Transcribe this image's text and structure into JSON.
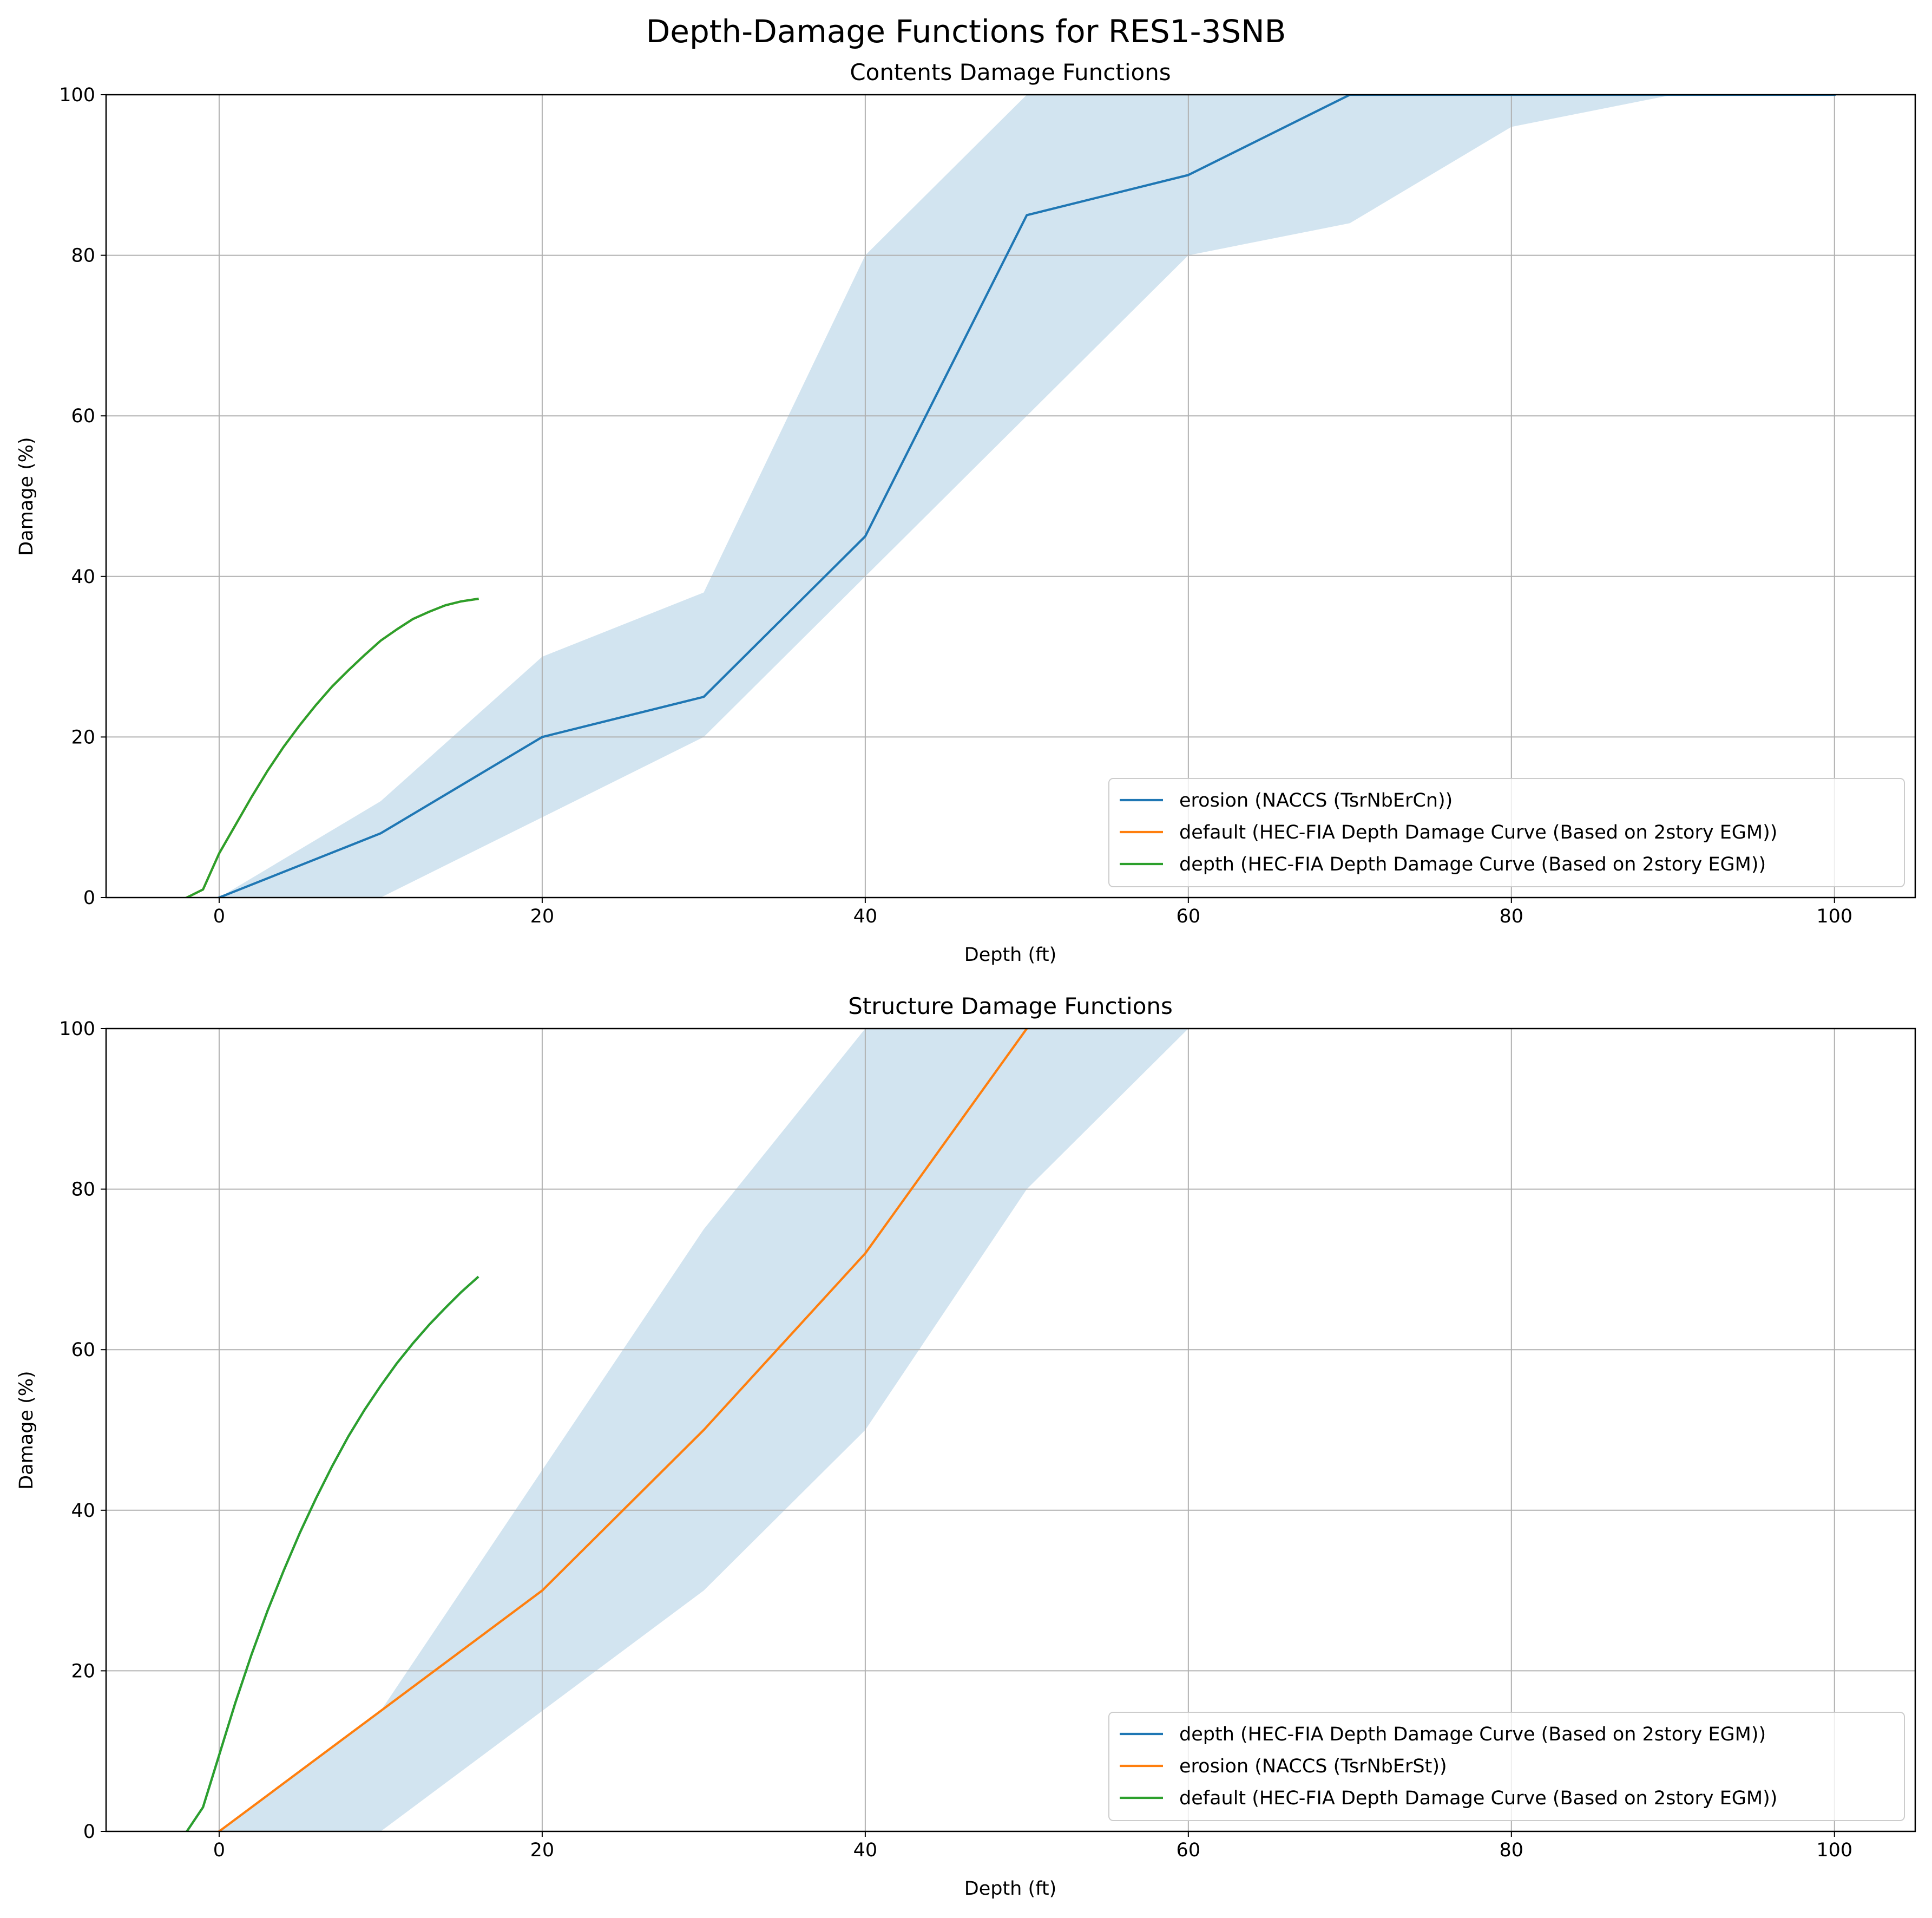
{
  "figure": {
    "suptitle": "Depth-Damage Functions for RES1-3SNB"
  },
  "chart_data": [
    {
      "type": "line",
      "title": "Contents Damage Functions",
      "xlabel": "Depth (ft)",
      "ylabel": "Damage (%)",
      "xlim": [
        -7,
        105
      ],
      "ylim": [
        0,
        100
      ],
      "xticks": [
        0,
        20,
        40,
        60,
        80,
        100
      ],
      "yticks": [
        0,
        20,
        40,
        60,
        80,
        100
      ],
      "grid": true,
      "legend_position": "lower right",
      "band": {
        "color": "#1f77b4",
        "opacity": 0.2,
        "x": [
          0,
          10,
          20,
          30,
          40,
          50,
          60,
          70,
          80,
          90,
          100
        ],
        "lower": [
          0,
          0,
          10,
          20,
          40,
          60,
          80,
          84,
          96,
          100,
          100
        ],
        "upper": [
          0,
          12,
          30,
          38,
          80,
          100,
          100,
          100,
          100,
          100,
          100
        ]
      },
      "series": [
        {
          "name": "erosion (NACCS (TsrNbErCn))",
          "color": "#1f77b4",
          "x": [
            0,
            10,
            20,
            30,
            40,
            50,
            60,
            70,
            80,
            90,
            100
          ],
          "y": [
            0,
            8,
            20,
            25,
            45,
            85,
            90,
            100,
            100,
            100,
            100
          ]
        },
        {
          "name": "default (HEC-FIA Depth Damage Curve (Based on 2story EGM))",
          "color": "#ff7f0e",
          "x": [
            -2,
            -1,
            0,
            1,
            2,
            3,
            4,
            5,
            6,
            7,
            8,
            9,
            10,
            11,
            12,
            13,
            14,
            15,
            16
          ],
          "y": [
            0,
            1,
            5.5,
            9,
            12.5,
            15.8,
            18.8,
            21.5,
            24,
            26.3,
            28.3,
            30.2,
            32,
            33.4,
            34.7,
            35.6,
            36.4,
            36.9,
            37.2
          ]
        },
        {
          "name": "depth (HEC-FIA Depth Damage Curve (Based on 2story EGM))",
          "color": "#2ca02c",
          "x": [
            -2,
            -1,
            0,
            1,
            2,
            3,
            4,
            5,
            6,
            7,
            8,
            9,
            10,
            11,
            12,
            13,
            14,
            15,
            16
          ],
          "y": [
            0,
            1,
            5.5,
            9,
            12.5,
            15.8,
            18.8,
            21.5,
            24,
            26.3,
            28.3,
            30.2,
            32,
            33.4,
            34.7,
            35.6,
            36.4,
            36.9,
            37.2
          ]
        }
      ]
    },
    {
      "type": "line",
      "title": "Structure Damage Functions",
      "xlabel": "Depth (ft)",
      "ylabel": "Damage (%)",
      "xlim": [
        -7,
        105
      ],
      "ylim": [
        0,
        100
      ],
      "xticks": [
        0,
        20,
        40,
        60,
        80,
        100
      ],
      "yticks": [
        0,
        20,
        40,
        60,
        80,
        100
      ],
      "grid": true,
      "legend_position": "lower right",
      "band": {
        "color": "#1f77b4",
        "opacity": 0.2,
        "x": [
          0,
          10,
          20,
          30,
          40,
          50,
          60
        ],
        "lower": [
          0,
          0,
          15,
          30,
          50,
          80,
          100
        ],
        "upper": [
          0,
          15,
          45,
          75,
          100,
          100,
          100
        ]
      },
      "series": [
        {
          "name": "depth (HEC-FIA Depth Damage Curve (Based on 2story EGM))",
          "color": "#1f77b4",
          "x": [
            -2,
            -1,
            0,
            1,
            2,
            3,
            4,
            5,
            6,
            7,
            8,
            9,
            10,
            11,
            12,
            13,
            14,
            15,
            16
          ],
          "y": [
            0,
            3,
            9.5,
            16,
            22,
            27.5,
            32.5,
            37.2,
            41.5,
            45.5,
            49.2,
            52.5,
            55.5,
            58.3,
            60.8,
            63.1,
            65.2,
            67.2,
            69
          ]
        },
        {
          "name": "erosion (NACCS (TsrNbErSt))",
          "color": "#ff7f0e",
          "x": [
            0,
            10,
            20,
            30,
            40,
            50
          ],
          "y": [
            0,
            15,
            30,
            50,
            72,
            100
          ]
        },
        {
          "name": "default (HEC-FIA Depth Damage Curve (Based on 2story EGM))",
          "color": "#2ca02c",
          "x": [
            -2,
            -1,
            0,
            1,
            2,
            3,
            4,
            5,
            6,
            7,
            8,
            9,
            10,
            11,
            12,
            13,
            14,
            15,
            16
          ],
          "y": [
            0,
            3,
            9.5,
            16,
            22,
            27.5,
            32.5,
            37.2,
            41.5,
            45.5,
            49.2,
            52.5,
            55.5,
            58.3,
            60.8,
            63.1,
            65.2,
            67.2,
            69
          ]
        }
      ]
    }
  ]
}
